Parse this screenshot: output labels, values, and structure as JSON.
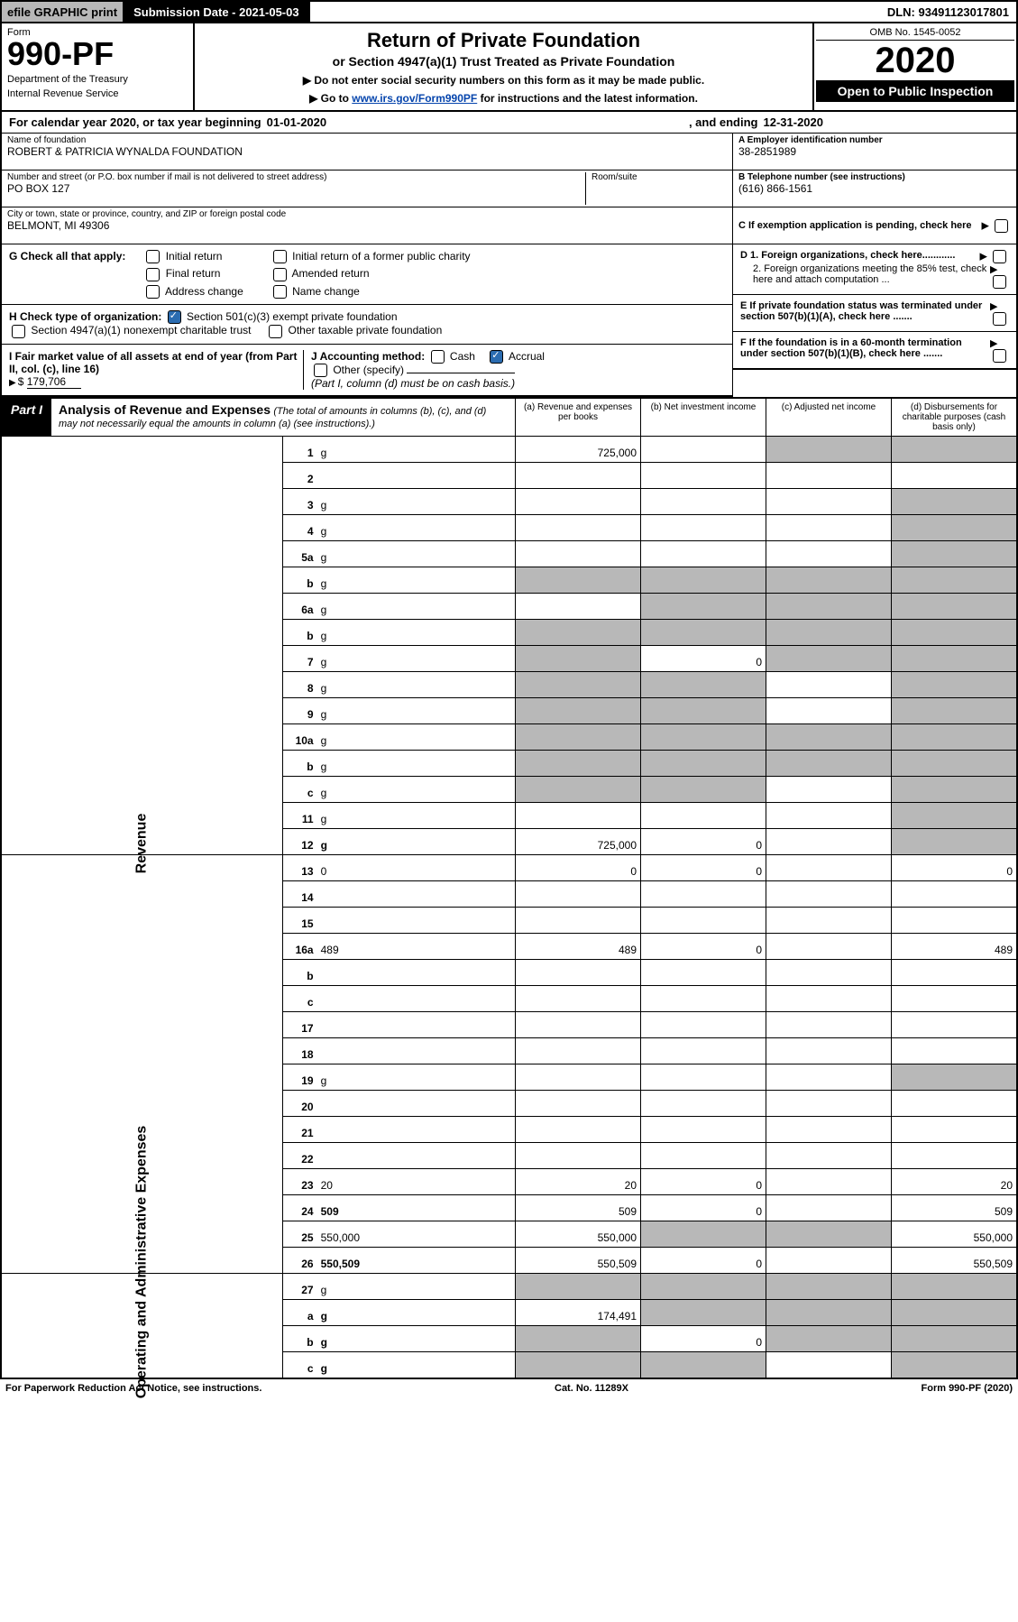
{
  "topbar": {
    "efile": "efile GRAPHIC print",
    "subdate_label": "Submission Date - 2021-05-03",
    "dln": "DLN: 93491123017801"
  },
  "header": {
    "form_word": "Form",
    "form_num": "990-PF",
    "dept1": "Department of the Treasury",
    "dept2": "Internal Revenue Service",
    "title1": "Return of Private Foundation",
    "title2": "or Section 4947(a)(1) Trust Treated as Private Foundation",
    "note1": "▶ Do not enter social security numbers on this form as it may be made public.",
    "note2_pre": "▶ Go to ",
    "note2_link": "www.irs.gov/Form990PF",
    "note2_post": " for instructions and the latest information.",
    "omb": "OMB No. 1545-0052",
    "year": "2020",
    "open": "Open to Public Inspection"
  },
  "calyr": {
    "text1": "For calendar year 2020, or tax year beginning ",
    "begin": "01-01-2020",
    "text2": ", and ending ",
    "end": "12-31-2020"
  },
  "id": {
    "name_label": "Name of foundation",
    "name": "ROBERT & PATRICIA WYNALDA FOUNDATION",
    "addr_label": "Number and street (or P.O. box number if mail is not delivered to street address)",
    "addr": "PO BOX 127",
    "room_label": "Room/suite",
    "room": "",
    "city_label": "City or town, state or province, country, and ZIP or foreign postal code",
    "city": "BELMONT, MI  49306",
    "A_label": "A Employer identification number",
    "A_val": "38-2851989",
    "B_label": "B Telephone number (see instructions)",
    "B_val": "(616) 866-1561",
    "C_label": "C If exemption application is pending, check here"
  },
  "checks": {
    "G_label": "G Check all that apply:",
    "G_opts": [
      "Initial return",
      "Initial return of a former public charity",
      "Final return",
      "Amended return",
      "Address change",
      "Name change"
    ],
    "H_label": "H Check type of organization:",
    "H_opt1": "Section 501(c)(3) exempt private foundation",
    "H_opt2": "Section 4947(a)(1) nonexempt charitable trust",
    "H_opt3": "Other taxable private foundation",
    "I_label": "I Fair market value of all assets at end of year (from Part II, col. (c), line 16)",
    "I_val": "179,706",
    "J_label": "J Accounting method:",
    "J_cash": "Cash",
    "J_accrual": "Accrual",
    "J_other": "Other (specify)",
    "J_note": "(Part I, column (d) must be on cash basis.)",
    "D1": "D 1. Foreign organizations, check here............",
    "D2": "2. Foreign organizations meeting the 85% test, check here and attach computation ...",
    "E": "E  If private foundation status was terminated under section 507(b)(1)(A), check here .......",
    "F": "F  If the foundation is in a 60-month termination under section 507(b)(1)(B), check here .......",
    "arrow": "▶"
  },
  "part1": {
    "label": "Part I",
    "title_b": "Analysis of Revenue and Expenses",
    "title_i": "(The total of amounts in columns (b), (c), and (d) may not necessarily equal the amounts in column (a) (see instructions).)",
    "col_a": "(a)  Revenue and expenses per books",
    "col_b": "(b)  Net investment income",
    "col_c": "(c)  Adjusted net income",
    "col_d": "(d)  Disbursements for charitable purposes (cash basis only)"
  },
  "sections": {
    "revenue": "Revenue",
    "expenses": "Operating and Administrative Expenses"
  },
  "rows": [
    {
      "n": "1",
      "d": "g",
      "a": "725,000",
      "b": "",
      "c": "g"
    },
    {
      "n": "2",
      "d": "",
      "a": "",
      "b": "",
      "c": ""
    },
    {
      "n": "3",
      "d": "g",
      "a": "",
      "b": "",
      "c": ""
    },
    {
      "n": "4",
      "d": "g",
      "a": "",
      "b": "",
      "c": ""
    },
    {
      "n": "5a",
      "d": "g",
      "a": "",
      "b": "",
      "c": ""
    },
    {
      "n": "b",
      "d": "g",
      "a": "g",
      "b": "g",
      "c": "g"
    },
    {
      "n": "6a",
      "d": "g",
      "a": "",
      "b": "g",
      "c": "g"
    },
    {
      "n": "b",
      "d": "g",
      "a": "g",
      "b": "g",
      "c": "g"
    },
    {
      "n": "7",
      "d": "g",
      "a": "g",
      "b": "0",
      "c": "g"
    },
    {
      "n": "8",
      "d": "g",
      "a": "g",
      "b": "g",
      "c": ""
    },
    {
      "n": "9",
      "d": "g",
      "a": "g",
      "b": "g",
      "c": ""
    },
    {
      "n": "10a",
      "d": "g",
      "a": "g",
      "b": "g",
      "c": "g"
    },
    {
      "n": "b",
      "d": "g",
      "a": "g",
      "b": "g",
      "c": "g"
    },
    {
      "n": "c",
      "d": "g",
      "a": "g",
      "b": "g",
      "c": ""
    },
    {
      "n": "11",
      "d": "g",
      "a": "",
      "b": "",
      "c": ""
    },
    {
      "n": "12",
      "d": "g",
      "a": "725,000",
      "b": "0",
      "c": "",
      "bold": true
    }
  ],
  "rows2": [
    {
      "n": "13",
      "d": "0",
      "a": "0",
      "b": "0",
      "c": ""
    },
    {
      "n": "14",
      "d": "",
      "a": "",
      "b": "",
      "c": ""
    },
    {
      "n": "15",
      "d": "",
      "a": "",
      "b": "",
      "c": ""
    },
    {
      "n": "16a",
      "d": "489",
      "a": "489",
      "b": "0",
      "c": ""
    },
    {
      "n": "b",
      "d": "",
      "a": "",
      "b": "",
      "c": ""
    },
    {
      "n": "c",
      "d": "",
      "a": "",
      "b": "",
      "c": ""
    },
    {
      "n": "17",
      "d": "",
      "a": "",
      "b": "",
      "c": ""
    },
    {
      "n": "18",
      "d": "",
      "a": "",
      "b": "",
      "c": ""
    },
    {
      "n": "19",
      "d": "g",
      "a": "",
      "b": "",
      "c": ""
    },
    {
      "n": "20",
      "d": "",
      "a": "",
      "b": "",
      "c": ""
    },
    {
      "n": "21",
      "d": "",
      "a": "",
      "b": "",
      "c": ""
    },
    {
      "n": "22",
      "d": "",
      "a": "",
      "b": "",
      "c": ""
    },
    {
      "n": "23",
      "d": "20",
      "a": "20",
      "b": "0",
      "c": ""
    },
    {
      "n": "24",
      "d": "509",
      "a": "509",
      "b": "0",
      "c": "",
      "bold": true
    },
    {
      "n": "25",
      "d": "550,000",
      "a": "550,000",
      "b": "g",
      "c": "g"
    },
    {
      "n": "26",
      "d": "550,509",
      "a": "550,509",
      "b": "0",
      "c": "",
      "bold": true
    }
  ],
  "rows3": [
    {
      "n": "27",
      "d": "g",
      "a": "g",
      "b": "g",
      "c": "g"
    },
    {
      "n": "a",
      "d": "g",
      "a": "174,491",
      "b": "g",
      "c": "g",
      "bold": true
    },
    {
      "n": "b",
      "d": "g",
      "a": "g",
      "b": "0",
      "c": "g",
      "bold": true
    },
    {
      "n": "c",
      "d": "g",
      "a": "g",
      "b": "g",
      "c": "",
      "bold": true
    }
  ],
  "footer": {
    "left": "For Paperwork Reduction Act Notice, see instructions.",
    "mid": "Cat. No. 11289X",
    "right": "Form 990-PF (2020)"
  }
}
